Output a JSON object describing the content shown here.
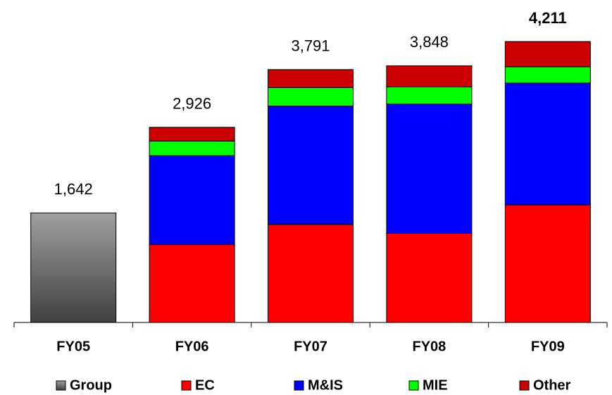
{
  "chart_data": {
    "type": "stacked_bar",
    "categories": [
      "FY05",
      "FY06",
      "FY07",
      "FY08",
      "FY09"
    ],
    "series": [
      {
        "name": "Group",
        "color": "#808080",
        "values": [
          1642,
          null,
          null,
          null,
          null
        ]
      },
      {
        "name": "EC",
        "color": "#ff0000",
        "values": [
          null,
          1170,
          1470,
          1335,
          1763
        ]
      },
      {
        "name": "M&IS",
        "color": "#0000ff",
        "values": [
          null,
          1330,
          1775,
          1940,
          1827
        ]
      },
      {
        "name": "MIE",
        "color": "#00ff00",
        "values": [
          null,
          220,
          275,
          255,
          243
        ]
      },
      {
        "name": "Other",
        "color": "#cc0000",
        "values": [
          null,
          206,
          271,
          318,
          378
        ]
      }
    ],
    "totals": [
      1642,
      2926,
      3791,
      3848,
      4211
    ],
    "total_labels": [
      "1,642",
      "2,926",
      "3,791",
      "3,848",
      "4,211"
    ]
  }
}
